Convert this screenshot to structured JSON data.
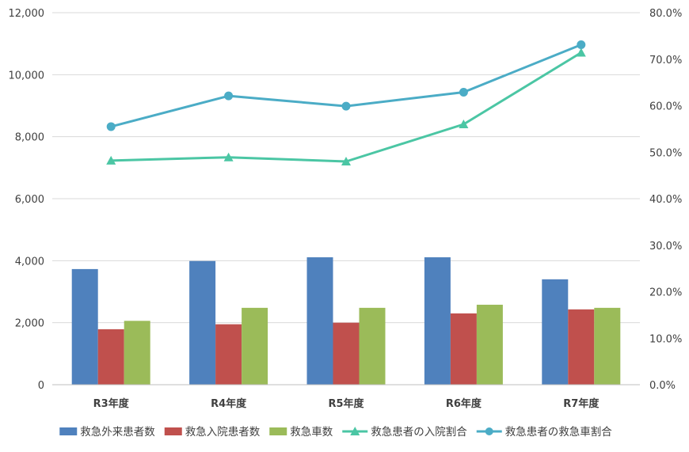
{
  "chart_data": {
    "type": "bar",
    "categories": [
      "R3年度",
      "R4年度",
      "R5年度",
      "R6年度",
      "R7年度"
    ],
    "left_axis": {
      "ylim": [
        0,
        12000
      ],
      "ticks": [
        "0",
        "2,000",
        "4,000",
        "6,000",
        "8,000",
        "10,000",
        "12,000"
      ],
      "tick_values": [
        0,
        2000,
        4000,
        6000,
        8000,
        10000,
        12000
      ]
    },
    "right_axis": {
      "ylim": [
        0,
        80
      ],
      "ticks": [
        "0.0%",
        "10.0%",
        "20.0%",
        "30.0%",
        "40.0%",
        "50.0%",
        "60.0%",
        "70.0%",
        "80.0%"
      ],
      "tick_values": [
        0,
        10,
        20,
        30,
        40,
        50,
        60,
        70,
        80
      ]
    },
    "bar_series": [
      {
        "name": "救急外来患者数",
        "color": "#4f81bd",
        "values": [
          3730,
          3990,
          4110,
          4110,
          3400
        ]
      },
      {
        "name": "救急入院患者数",
        "color": "#c0504d",
        "values": [
          1790,
          1950,
          2000,
          2300,
          2430
        ]
      },
      {
        "name": "救急車数",
        "color": "#9bbb59",
        "values": [
          2060,
          2480,
          2480,
          2580,
          2480
        ]
      }
    ],
    "line_series": [
      {
        "name": "救急患者の入院割合",
        "color": "#4bc6a4",
        "marker": "triangle",
        "values": [
          48.2,
          48.9,
          48.0,
          56.0,
          71.4
        ]
      },
      {
        "name": "救急患者の救急車割合",
        "color": "#4bacc6",
        "marker": "circle",
        "values": [
          55.5,
          62.1,
          59.9,
          62.9,
          73.1
        ]
      }
    ],
    "grid": true,
    "legend_position": "bottom"
  }
}
